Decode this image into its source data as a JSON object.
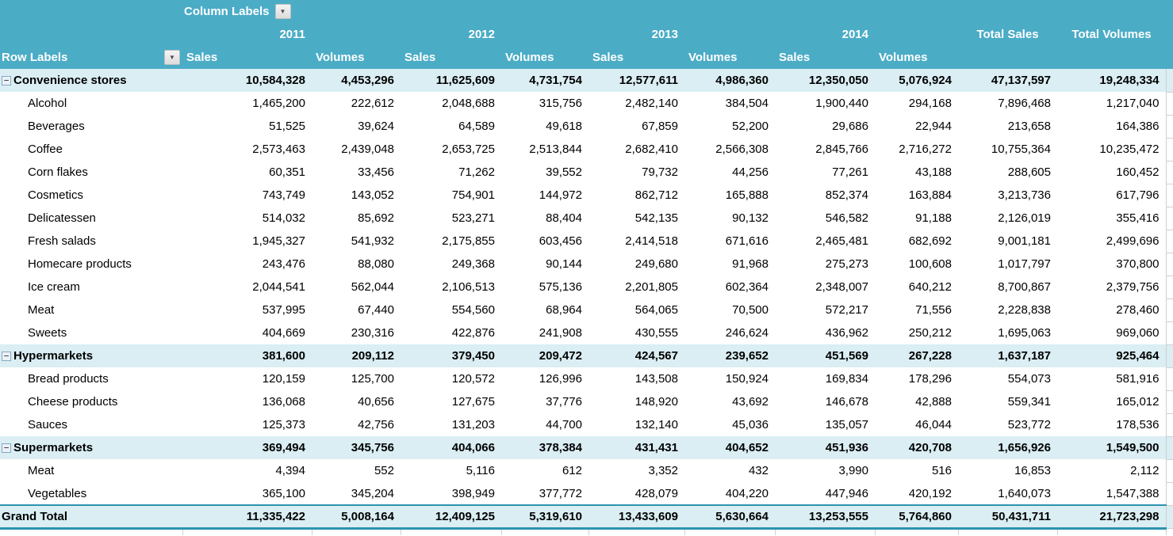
{
  "colors": {
    "header_bg": "#4BACC6",
    "band_bg": "#DAEEF3",
    "grand_total_border": "#2E93B0",
    "gridline": "#D0D0D0"
  },
  "icons": {
    "dropdown": "▼",
    "collapse": "−"
  },
  "table": {
    "column_labels_caption": "Column Labels",
    "row_labels_caption": "Row Labels",
    "years": [
      "2011",
      "2012",
      "2013",
      "2014"
    ],
    "year_sub_headers": [
      "Sales",
      "Volumes"
    ],
    "total_columns": [
      "Total Sales",
      "Total Volumes"
    ],
    "rows": [
      {
        "label": "Convenience stores",
        "type": "group",
        "values": [
          "10,584,328",
          "4,453,296",
          "11,625,609",
          "4,731,754",
          "12,577,611",
          "4,986,360",
          "12,350,050",
          "5,076,924",
          "47,137,597",
          "19,248,334"
        ]
      },
      {
        "label": "Alcohol",
        "type": "item",
        "values": [
          "1,465,200",
          "222,612",
          "2,048,688",
          "315,756",
          "2,482,140",
          "384,504",
          "1,900,440",
          "294,168",
          "7,896,468",
          "1,217,040"
        ]
      },
      {
        "label": "Beverages",
        "type": "item",
        "values": [
          "51,525",
          "39,624",
          "64,589",
          "49,618",
          "67,859",
          "52,200",
          "29,686",
          "22,944",
          "213,658",
          "164,386"
        ]
      },
      {
        "label": "Coffee",
        "type": "item",
        "values": [
          "2,573,463",
          "2,439,048",
          "2,653,725",
          "2,513,844",
          "2,682,410",
          "2,566,308",
          "2,845,766",
          "2,716,272",
          "10,755,364",
          "10,235,472"
        ]
      },
      {
        "label": "Corn flakes",
        "type": "item",
        "values": [
          "60,351",
          "33,456",
          "71,262",
          "39,552",
          "79,732",
          "44,256",
          "77,261",
          "43,188",
          "288,605",
          "160,452"
        ]
      },
      {
        "label": "Cosmetics",
        "type": "item",
        "values": [
          "743,749",
          "143,052",
          "754,901",
          "144,972",
          "862,712",
          "165,888",
          "852,374",
          "163,884",
          "3,213,736",
          "617,796"
        ]
      },
      {
        "label": "Delicatessen",
        "type": "item",
        "values": [
          "514,032",
          "85,692",
          "523,271",
          "88,404",
          "542,135",
          "90,132",
          "546,582",
          "91,188",
          "2,126,019",
          "355,416"
        ]
      },
      {
        "label": "Fresh salads",
        "type": "item",
        "values": [
          "1,945,327",
          "541,932",
          "2,175,855",
          "603,456",
          "2,414,518",
          "671,616",
          "2,465,481",
          "682,692",
          "9,001,181",
          "2,499,696"
        ]
      },
      {
        "label": "Homecare products",
        "type": "item",
        "values": [
          "243,476",
          "88,080",
          "249,368",
          "90,144",
          "249,680",
          "91,968",
          "275,273",
          "100,608",
          "1,017,797",
          "370,800"
        ]
      },
      {
        "label": "Ice cream",
        "type": "item",
        "values": [
          "2,044,541",
          "562,044",
          "2,106,513",
          "575,136",
          "2,201,805",
          "602,364",
          "2,348,007",
          "640,212",
          "8,700,867",
          "2,379,756"
        ]
      },
      {
        "label": "Meat",
        "type": "item",
        "values": [
          "537,995",
          "67,440",
          "554,560",
          "68,964",
          "564,065",
          "70,500",
          "572,217",
          "71,556",
          "2,228,838",
          "278,460"
        ]
      },
      {
        "label": "Sweets",
        "type": "item",
        "values": [
          "404,669",
          "230,316",
          "422,876",
          "241,908",
          "430,555",
          "246,624",
          "436,962",
          "250,212",
          "1,695,063",
          "969,060"
        ]
      },
      {
        "label": "Hypermarkets",
        "type": "group",
        "values": [
          "381,600",
          "209,112",
          "379,450",
          "209,472",
          "424,567",
          "239,652",
          "451,569",
          "267,228",
          "1,637,187",
          "925,464"
        ]
      },
      {
        "label": "Bread products",
        "type": "item",
        "values": [
          "120,159",
          "125,700",
          "120,572",
          "126,996",
          "143,508",
          "150,924",
          "169,834",
          "178,296",
          "554,073",
          "581,916"
        ]
      },
      {
        "label": "Cheese products",
        "type": "item",
        "values": [
          "136,068",
          "40,656",
          "127,675",
          "37,776",
          "148,920",
          "43,692",
          "146,678",
          "42,888",
          "559,341",
          "165,012"
        ]
      },
      {
        "label": "Sauces",
        "type": "item",
        "values": [
          "125,373",
          "42,756",
          "131,203",
          "44,700",
          "132,140",
          "45,036",
          "135,057",
          "46,044",
          "523,772",
          "178,536"
        ]
      },
      {
        "label": "Supermarkets",
        "type": "group",
        "values": [
          "369,494",
          "345,756",
          "404,066",
          "378,384",
          "431,431",
          "404,652",
          "451,936",
          "420,708",
          "1,656,926",
          "1,549,500"
        ]
      },
      {
        "label": "Meat",
        "type": "item",
        "values": [
          "4,394",
          "552",
          "5,116",
          "612",
          "3,352",
          "432",
          "3,990",
          "516",
          "16,853",
          "2,112"
        ]
      },
      {
        "label": "Vegetables",
        "type": "item",
        "values": [
          "365,100",
          "345,204",
          "398,949",
          "377,772",
          "428,079",
          "404,220",
          "447,946",
          "420,192",
          "1,640,073",
          "1,547,388"
        ]
      },
      {
        "label": "Grand Total",
        "type": "grand_total",
        "values": [
          "11,335,422",
          "5,008,164",
          "12,409,125",
          "5,319,610",
          "13,433,609",
          "5,630,664",
          "13,253,555",
          "5,764,860",
          "50,431,711",
          "21,723,298"
        ]
      }
    ]
  }
}
